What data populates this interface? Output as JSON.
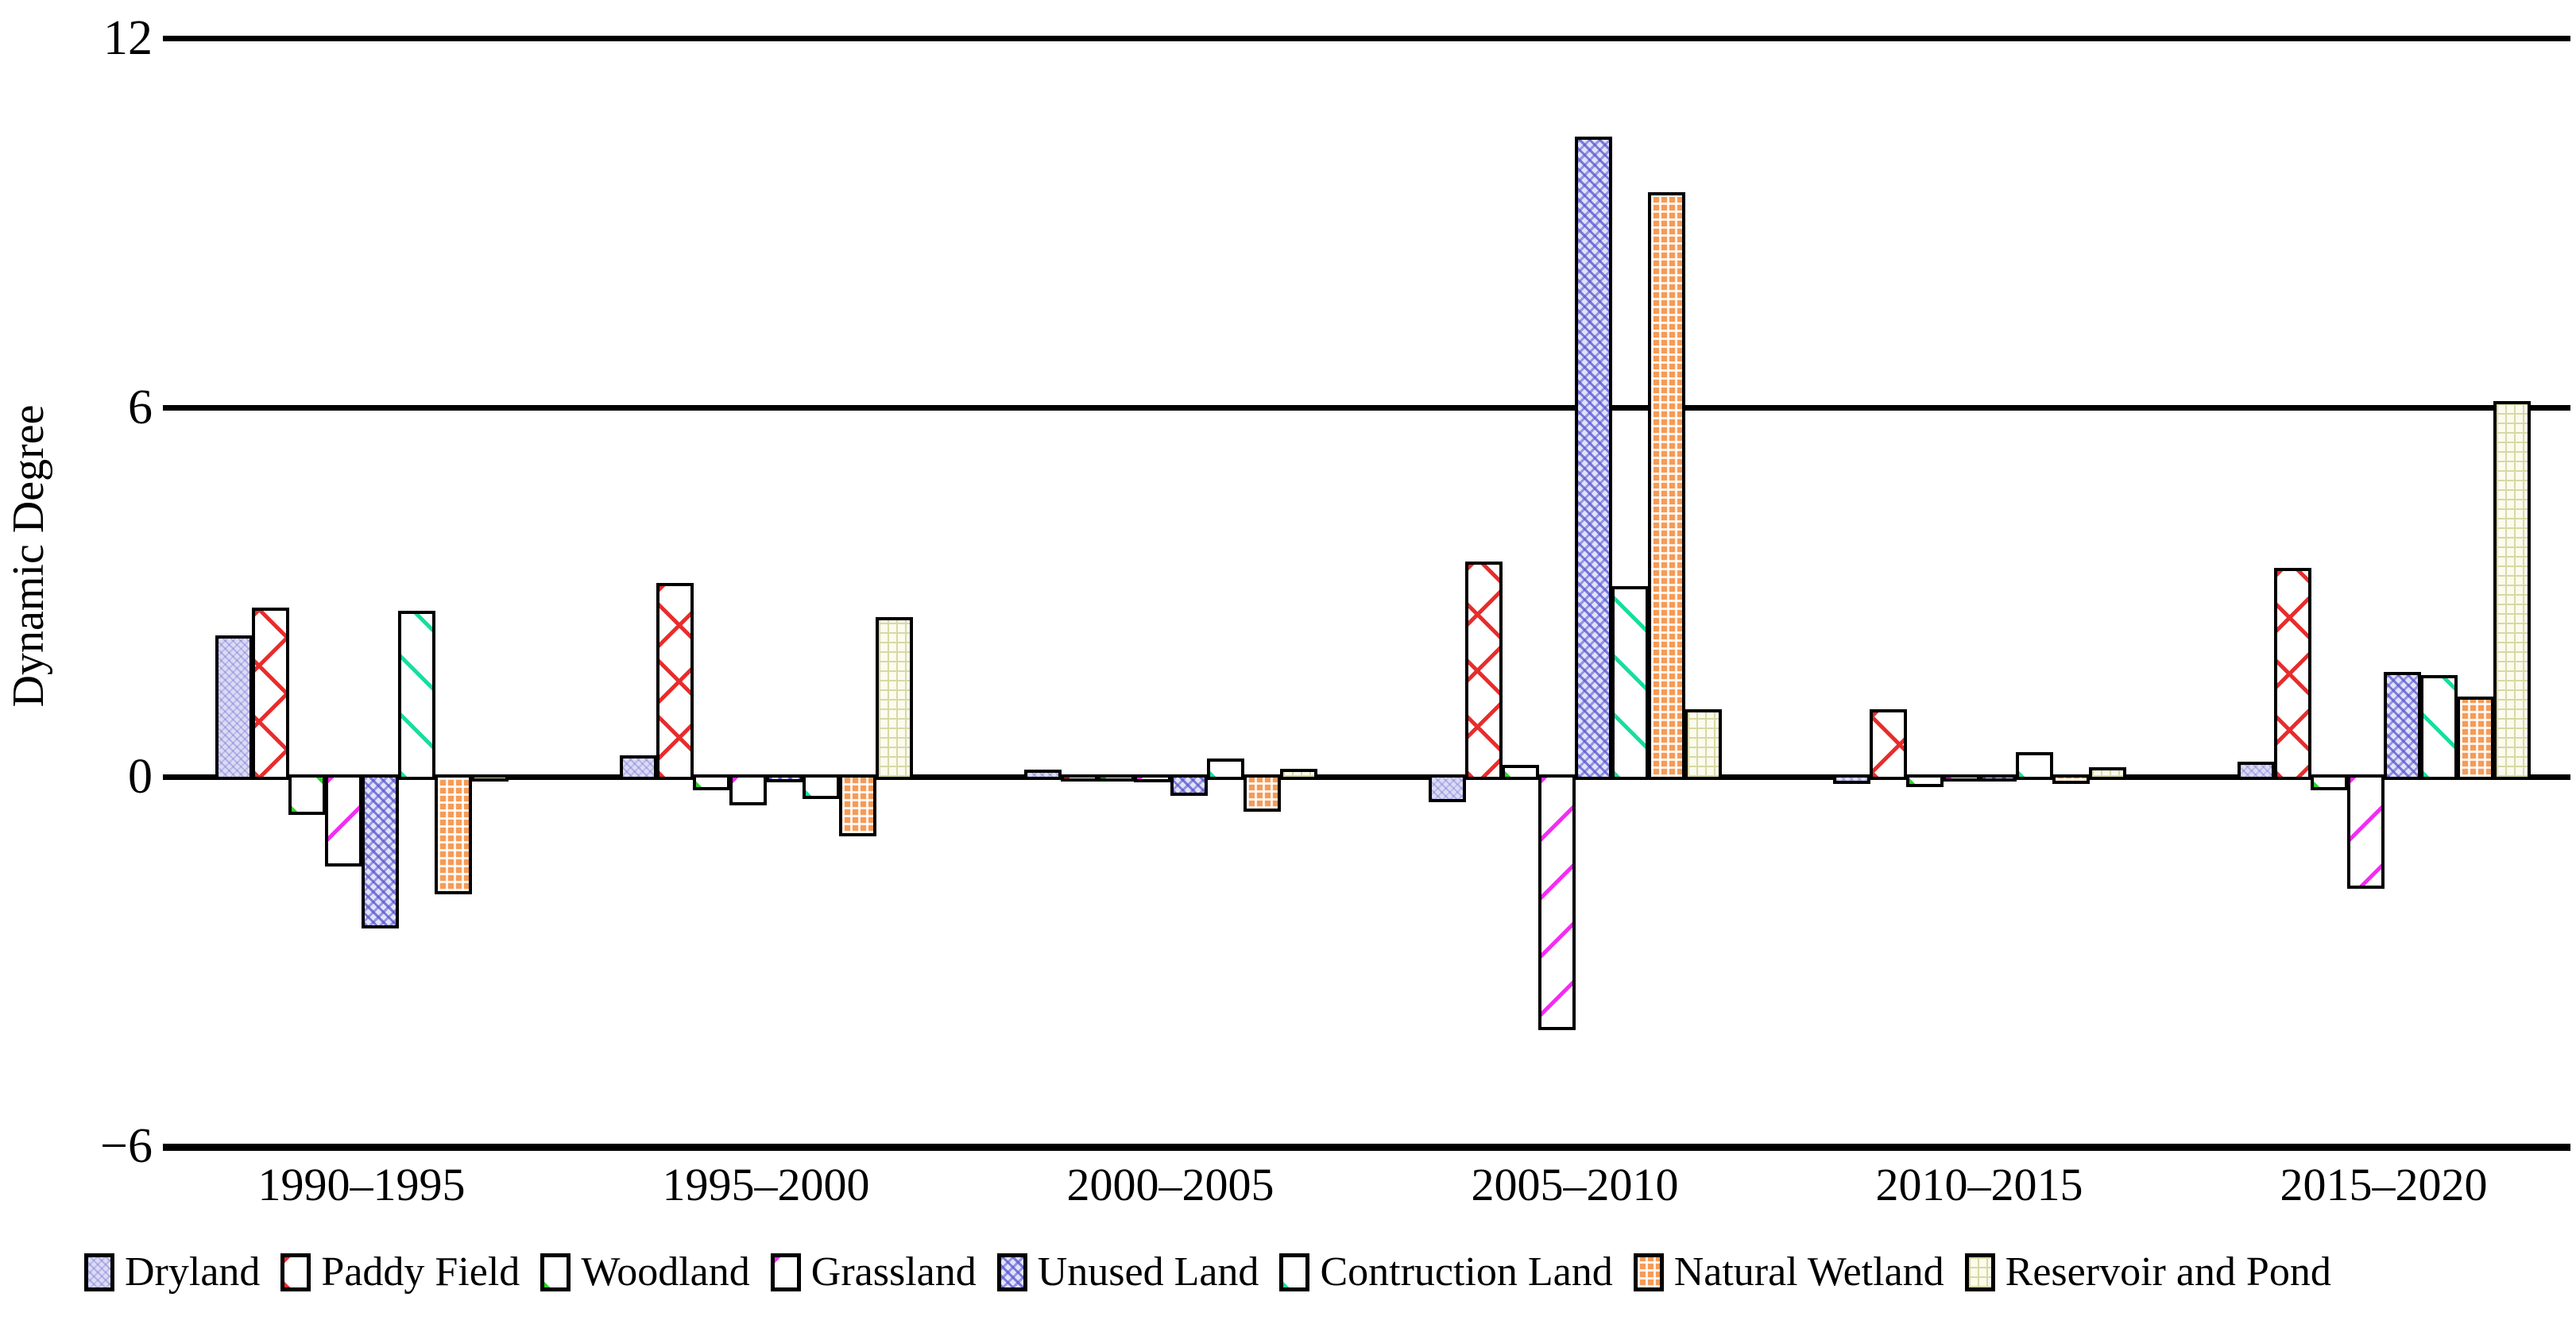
{
  "figure": {
    "y_axis_title": "Dynamic Degree"
  },
  "chart_data": {
    "type": "bar",
    "title": "",
    "xlabel": "",
    "ylabel": "Dynamic Degree",
    "ylim": [
      -6,
      12
    ],
    "grid": "horizontal gridlines at y = 12, 6, 0, -6; bottom line is x-axis",
    "legend_position": "bottom",
    "yticks": [
      {
        "label": "12",
        "value": 12
      },
      {
        "label": "6",
        "value": 6
      },
      {
        "label": "0",
        "value": 0
      },
      {
        "label": "−6",
        "value": -6
      }
    ],
    "categories": [
      "1990–1995",
      "1995–2000",
      "2000–2005",
      "2005–2010",
      "2010–2015",
      "2015–2020"
    ],
    "series": [
      {
        "name": "Dryland",
        "pattern": "dryland",
        "color": "#dcdbf4",
        "values": [
          2.3,
          0.35,
          0.12,
          -0.4,
          -0.1,
          0.25
        ]
      },
      {
        "name": "Paddy Field",
        "pattern": "paddy",
        "color": "#e82c2c",
        "values": [
          2.75,
          3.15,
          -0.06,
          3.5,
          1.1,
          3.4
        ]
      },
      {
        "name": "Woodland",
        "pattern": "woodland",
        "color": "#2ed32e",
        "values": [
          -0.6,
          -0.2,
          -0.05,
          0.2,
          -0.15,
          -0.2
        ]
      },
      {
        "name": "Grassland",
        "pattern": "grassland",
        "color": "#f32cf3",
        "values": [
          -1.45,
          -0.45,
          -0.08,
          -4.1,
          -0.06,
          -1.8
        ]
      },
      {
        "name": "Unused Land",
        "pattern": "unused",
        "color": "#5a5acd",
        "values": [
          -2.45,
          -0.08,
          -0.3,
          10.4,
          -0.05,
          1.7
        ]
      },
      {
        "name": "Contruction Land",
        "pattern": "construction",
        "color": "#17dd9e",
        "values": [
          2.7,
          -0.35,
          0.3,
          3.1,
          0.4,
          1.65
        ]
      },
      {
        "name": "Natural Wetland",
        "pattern": "wetland",
        "color": "#f59b57",
        "values": [
          -1.9,
          -0.95,
          -0.55,
          9.5,
          -0.1,
          1.3
        ]
      },
      {
        "name": "Reservoir and Pond",
        "pattern": "reservoir",
        "color": "#e6e6c2",
        "values": [
          -0.05,
          2.6,
          0.13,
          1.1,
          0.15,
          6.1
        ]
      }
    ]
  }
}
